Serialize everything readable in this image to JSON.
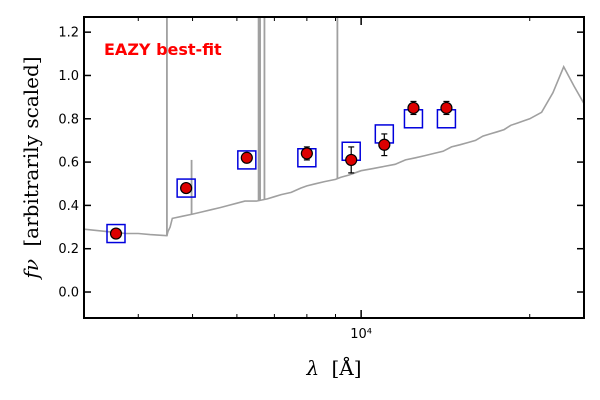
{
  "chart_data": {
    "type": "scatter",
    "title": "",
    "xlabel_symbol": "λ",
    "xlabel_unit": "[Å]",
    "ylabel_symbol": "fν",
    "ylabel_text": "[arbitrarily scaled]",
    "annotation": "EAZY best-fit",
    "colors": {
      "annotation": "#ff0000",
      "spectrum": "#a0a0a0",
      "model_box": "#0000dd",
      "observed_fill": "#dd0000"
    },
    "x_scale": "log",
    "xlim": [
      3200,
      25000
    ],
    "ylim": [
      -0.12,
      1.27
    ],
    "x_ticks": [
      {
        "value": 10000,
        "label": "10⁴"
      }
    ],
    "y_ticks": [
      {
        "value": 0.0,
        "label": "0.0"
      },
      {
        "value": 0.2,
        "label": "0.2"
      },
      {
        "value": 0.4,
        "label": "0.4"
      },
      {
        "value": 0.6,
        "label": "0.6"
      },
      {
        "value": 0.8,
        "label": "0.8"
      },
      {
        "value": 1.0,
        "label": "1.0"
      },
      {
        "value": 1.2,
        "label": "1.2"
      }
    ],
    "grid": false,
    "series": [
      {
        "kind": "model_spectrum",
        "x": [
          3200,
          3500,
          3800,
          4000,
          4200,
          4400,
          4500,
          4520,
          4560,
          4600,
          4800,
          5000,
          5200,
          5400,
          5600,
          5800,
          6000,
          6200,
          6500,
          6800,
          7000,
          7200,
          7500,
          7800,
          8000,
          8300,
          8600,
          9000,
          9200,
          9500,
          10000,
          10500,
          11000,
          11500,
          12000,
          12500,
          13000,
          13500,
          14000,
          14500,
          15000,
          15500,
          16000,
          16500,
          17000,
          17500,
          18000,
          18500,
          19000,
          19500,
          20000,
          21000,
          22000,
          23000,
          24000,
          25000
        ],
        "y": [
          0.29,
          0.28,
          0.27,
          0.27,
          0.265,
          0.262,
          0.26,
          0.28,
          0.3,
          0.34,
          0.35,
          0.36,
          0.37,
          0.38,
          0.39,
          0.4,
          0.41,
          0.42,
          0.42,
          0.43,
          0.44,
          0.45,
          0.46,
          0.48,
          0.49,
          0.5,
          0.51,
          0.52,
          0.53,
          0.54,
          0.56,
          0.57,
          0.58,
          0.59,
          0.61,
          0.62,
          0.63,
          0.64,
          0.65,
          0.67,
          0.68,
          0.69,
          0.7,
          0.72,
          0.73,
          0.74,
          0.75,
          0.77,
          0.78,
          0.79,
          0.8,
          0.83,
          0.92,
          1.04,
          0.95,
          0.87
        ],
        "emission_lines": [
          {
            "x": 4500,
            "y": 1.27
          },
          {
            "x": 4980,
            "y": 0.61
          },
          {
            "x": 6560,
            "y": 1.27
          },
          {
            "x": 6600,
            "y": 1.27
          },
          {
            "x": 6720,
            "y": 1.27
          },
          {
            "x": 9070,
            "y": 1.27
          }
        ]
      },
      {
        "kind": "model_photometry",
        "x": [
          3650,
          4870,
          6250,
          8000,
          9600,
          11000,
          12400,
          14200
        ],
        "y": [
          0.27,
          0.48,
          0.61,
          0.62,
          0.65,
          0.73,
          0.8,
          0.8
        ]
      },
      {
        "kind": "observed_photometry",
        "x": [
          3650,
          4870,
          6250,
          8000,
          9600,
          11000,
          12400,
          14200
        ],
        "y": [
          0.27,
          0.48,
          0.62,
          0.64,
          0.61,
          0.68,
          0.85,
          0.85
        ],
        "yerr": [
          0.01,
          0.01,
          0.02,
          0.03,
          0.06,
          0.05,
          0.03,
          0.03
        ]
      }
    ]
  }
}
